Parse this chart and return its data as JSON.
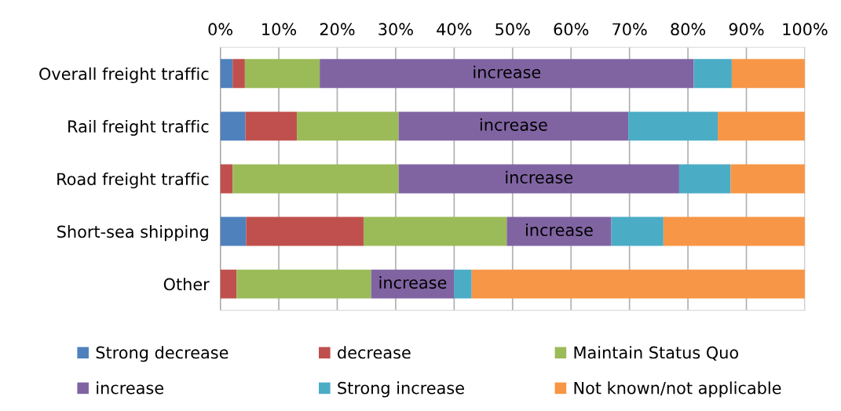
{
  "chart_data": {
    "type": "bar",
    "orientation": "horizontal",
    "stacked": true,
    "categories": [
      "Overall freight traffic",
      "Rail freight traffic",
      "Road freight traffic",
      "Short-sea shipping",
      "Other"
    ],
    "series": [
      {
        "name": "Strong decrease",
        "color": "#4f81bd",
        "values": [
          2.1,
          4.3,
          0,
          4.4,
          0
        ]
      },
      {
        "name": "decrease",
        "color": "#c0504d",
        "values": [
          2.1,
          8.8,
          2.1,
          20.1,
          2.8
        ]
      },
      {
        "name": "Maintain Status Quo",
        "color": "#9bbb59",
        "values": [
          12.8,
          17.4,
          28.4,
          24.5,
          23.0
        ]
      },
      {
        "name": "increase",
        "color": "#8064a2",
        "values": [
          64.0,
          39.3,
          48.0,
          17.9,
          14.2
        ]
      },
      {
        "name": "Strong increase",
        "color": "#4bacc6",
        "values": [
          6.5,
          15.3,
          8.8,
          8.9,
          3.0
        ]
      },
      {
        "name": "Not known/not applicable",
        "color": "#f79646",
        "values": [
          12.5,
          14.9,
          12.7,
          24.2,
          57.0
        ]
      }
    ],
    "xlim": [
      0,
      100
    ],
    "xticks": [
      {
        "value": 0,
        "label": "0%"
      },
      {
        "value": 10,
        "label": "10%"
      },
      {
        "value": 20,
        "label": "20%"
      },
      {
        "value": 30,
        "label": "30%"
      },
      {
        "value": 40,
        "label": "40%"
      },
      {
        "value": 50,
        "label": "50%"
      },
      {
        "value": 60,
        "label": "60%"
      },
      {
        "value": 70,
        "label": "70%"
      },
      {
        "value": 80,
        "label": "80%"
      },
      {
        "value": 90,
        "label": "90%"
      },
      {
        "value": 100,
        "label": "100%"
      }
    ],
    "grid": "x",
    "legend": "bottom",
    "annotations": [
      "increase",
      "increase",
      "increase",
      "increase",
      "increase"
    ]
  }
}
